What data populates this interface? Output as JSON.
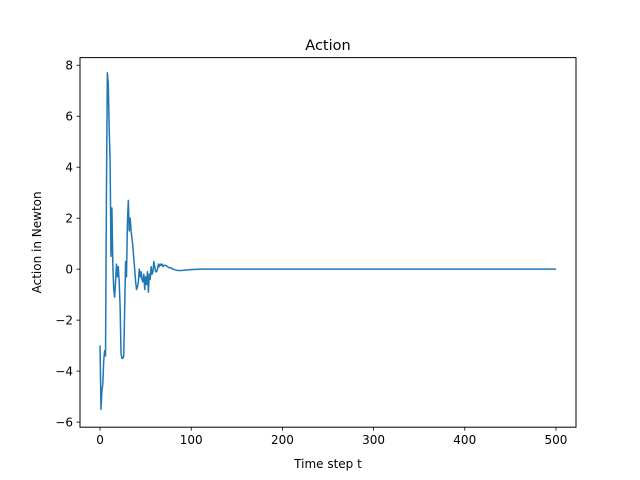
{
  "chart_data": {
    "type": "line",
    "title": "Action",
    "xlabel": "Time step t",
    "ylabel": "Action in Newton",
    "xlim": [
      -22,
      522
    ],
    "ylim": [
      -6.2,
      8.3
    ],
    "xticks": [
      0,
      100,
      200,
      300,
      400,
      500
    ],
    "yticks": [
      -6,
      -4,
      -2,
      0,
      2,
      4,
      6,
      8
    ],
    "grid": false,
    "series": [
      {
        "color": "#1f77b4",
        "x": [
          0,
          1,
          2,
          3,
          4,
          5,
          6,
          7,
          8,
          9,
          10,
          11,
          12,
          13,
          14,
          15,
          16,
          17,
          18,
          19,
          20,
          21,
          22,
          23,
          24,
          25,
          26,
          27,
          28,
          29,
          30,
          31,
          32,
          33,
          34,
          35,
          36,
          37,
          38,
          39,
          40,
          41,
          42,
          43,
          44,
          45,
          46,
          47,
          48,
          49,
          50,
          51,
          52,
          53,
          54,
          55,
          56,
          57,
          58,
          59,
          60,
          61,
          62,
          63,
          64,
          65,
          66,
          67,
          68,
          69,
          70,
          72,
          74,
          76,
          78,
          80,
          85,
          90,
          95,
          100,
          110,
          120,
          130,
          140,
          150,
          200,
          300,
          400,
          500
        ],
        "y": [
          -3.0,
          -5.5,
          -4.8,
          -4.5,
          -3.6,
          -3.2,
          -3.4,
          3.0,
          7.7,
          7.3,
          5.5,
          4.3,
          0.5,
          2.4,
          0.2,
          -0.8,
          -1.1,
          -0.5,
          0.2,
          -0.3,
          0.1,
          -0.5,
          -1.5,
          -3.3,
          -3.5,
          -3.5,
          -3.4,
          -1.5,
          0.3,
          -0.3,
          1.8,
          2.7,
          1.5,
          2.0,
          1.5,
          1.2,
          0.9,
          0.4,
          0.0,
          -0.5,
          -0.8,
          -0.7,
          -0.5,
          0.0,
          -0.3,
          -0.1,
          -0.4,
          -0.5,
          -0.2,
          -0.8,
          -0.3,
          -0.6,
          -0.1,
          -0.9,
          -0.2,
          -0.4,
          0.1,
          -0.2,
          -0.1,
          0.3,
          0.1,
          -0.1,
          -0.1,
          0.0,
          0.2,
          0.1,
          0.2,
          0.15,
          0.2,
          0.1,
          0.15,
          0.15,
          0.1,
          0.05,
          0.05,
          0.0,
          -0.05,
          -0.05,
          -0.03,
          -0.02,
          0.0,
          0.0,
          0.0,
          0.0,
          0.0,
          0.0,
          0.0,
          0.0,
          0.0
        ]
      }
    ]
  }
}
